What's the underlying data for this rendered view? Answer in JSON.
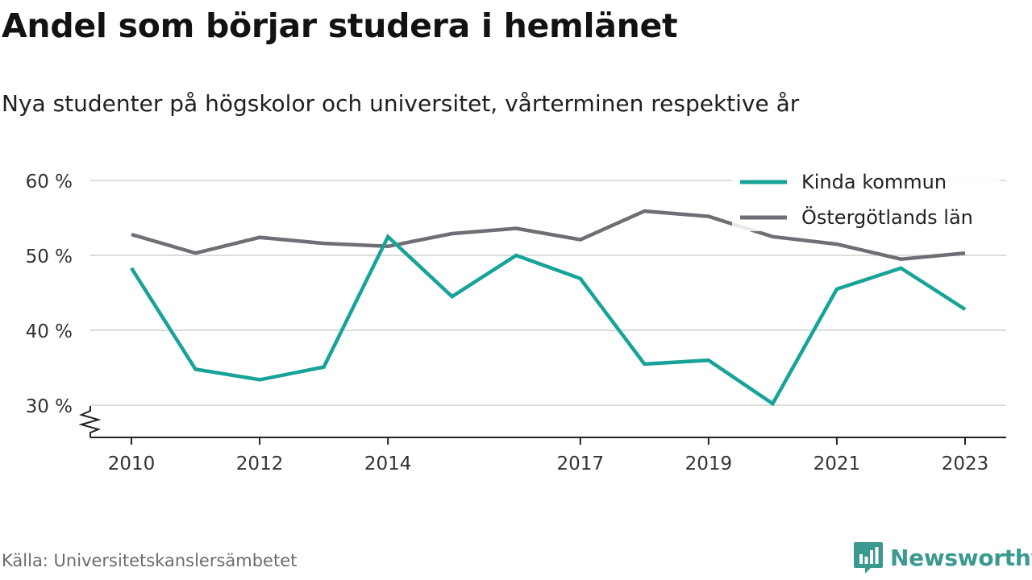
{
  "title": "Andel som börjar studera i hemlänet",
  "subtitle": "Nya studenter på högskolor och universitet, vårterminen respektive år",
  "source": "Källa: Universitetskanslersämbetet",
  "brand": "Newsworthy",
  "colors": {
    "kinda": "#17a398",
    "ostergotland": "#6f6e75",
    "grid": "#dcdcdc",
    "axis": "#222222",
    "brand": "#3a9a8f"
  },
  "chart_data": {
    "type": "line",
    "x": [
      2010,
      2011,
      2012,
      2013,
      2014,
      2015,
      2016,
      2017,
      2018,
      2019,
      2020,
      2021,
      2022,
      2023
    ],
    "x_tick_labels": [
      "2010",
      "2012",
      "2014",
      "2017",
      "2019",
      "2021",
      "2023"
    ],
    "y_ticks": [
      30,
      40,
      50,
      60
    ],
    "y_tick_labels": [
      "30 %",
      "40 %",
      "50 %",
      "60 %"
    ],
    "ylim": [
      25.7,
      60
    ],
    "axis_break": true,
    "grid": true,
    "legend_position": "top-right",
    "series": [
      {
        "name": "Kinda kommun",
        "color_key": "kinda",
        "values": [
          48.3,
          34.8,
          33.4,
          35.1,
          52.5,
          44.5,
          50.0,
          46.9,
          35.5,
          36.0,
          30.2,
          45.5,
          48.3,
          42.8
        ]
      },
      {
        "name": "Östergötlands län",
        "color_key": "ostergotland",
        "values": [
          52.8,
          50.3,
          52.4,
          51.6,
          51.2,
          52.9,
          53.6,
          52.1,
          55.9,
          55.2,
          52.5,
          51.5,
          49.5,
          50.3
        ]
      }
    ]
  }
}
